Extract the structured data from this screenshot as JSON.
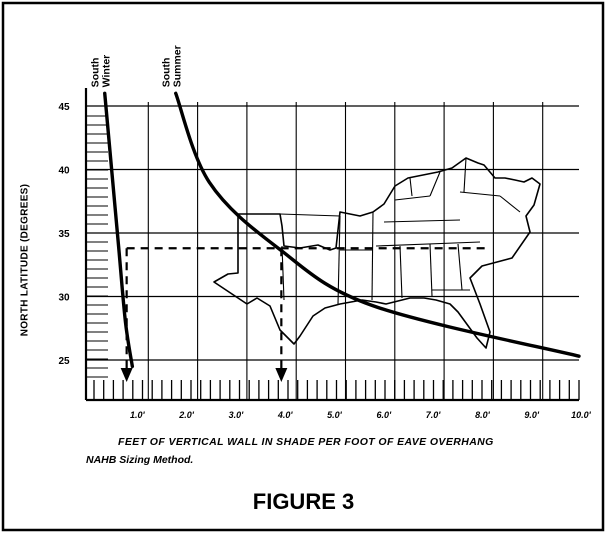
{
  "chart_data": {
    "type": "line",
    "title": "FIGURE 3",
    "caption": "NAHB Sizing Method.",
    "xlabel": "FEET OF VERTICAL WALL IN SHADE PER FOOT OF EAVE OVERHANG",
    "ylabel": "NORTH LATITUDE (DEGREES)",
    "xlim": [
      0,
      10
    ],
    "ylim": [
      23.5,
      46.5
    ],
    "x_ticks": [
      1,
      2,
      3,
      4,
      5,
      6,
      7,
      8,
      9,
      10
    ],
    "x_tick_labels": [
      "1.0'",
      "2.0'",
      "3.0'",
      "4.0'",
      "5.0'",
      "6.0'",
      "7.0'",
      "8.0'",
      "9.0'",
      "10.0'"
    ],
    "y_ticks": [
      25,
      30,
      35,
      40,
      45
    ],
    "y_tick_labels": [
      "25",
      "30",
      "35",
      "40",
      "45"
    ],
    "series": [
      {
        "name": "South Winter",
        "x": [
          0.38,
          0.52,
          0.66,
          0.8,
          0.94
        ],
        "y": [
          46,
          40,
          34,
          28,
          24.5
        ]
      },
      {
        "name": "South Summer",
        "x": [
          1.82,
          2.5,
          3.9,
          5.8,
          10.0
        ],
        "y": [
          46,
          39,
          33.8,
          29.3,
          25.3
        ]
      }
    ],
    "reference": {
      "latitude": 33.8,
      "winter_shade": 0.5,
      "summer_shade": 3.8
    },
    "background": "map of southern United States",
    "grid": true
  }
}
